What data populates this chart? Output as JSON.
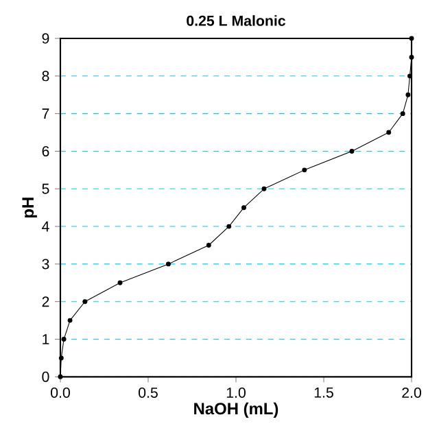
{
  "chart_data": {
    "type": "line",
    "title": "**0.25 L Malonic**",
    "xlabel": "**NaOH (mL)**",
    "ylabel": "**pH**",
    "x": [
      0,
      0.005,
      0.02,
      0.055,
      0.14,
      0.34,
      0.615,
      0.845,
      0.96,
      1.045,
      1.16,
      1.39,
      1.66,
      1.87,
      1.95,
      1.98,
      1.99,
      2.0,
      2.0
    ],
    "values": [
      0,
      0.5,
      1,
      1.5,
      2,
      2.5,
      3,
      3.5,
      4,
      4.5,
      5,
      5.5,
      6,
      6.5,
      7,
      7.5,
      8,
      8.5,
      9
    ],
    "color": "#000000",
    "marker": "circle",
    "line_style": "solid",
    "grid": "y",
    "xlim": [
      0,
      2
    ],
    "ylim": [
      0,
      9
    ],
    "xticks": [
      {
        "value": 0,
        "label": "0.0"
      },
      {
        "value": 0.5,
        "label": "0.5"
      },
      {
        "value": 1,
        "label": "1.0"
      },
      {
        "value": 1.5,
        "label": "1.5"
      },
      {
        "value": 2,
        "label": "2.0"
      }
    ],
    "yticks": [
      0,
      1,
      2,
      3,
      4,
      5,
      6,
      7,
      8,
      9
    ]
  }
}
